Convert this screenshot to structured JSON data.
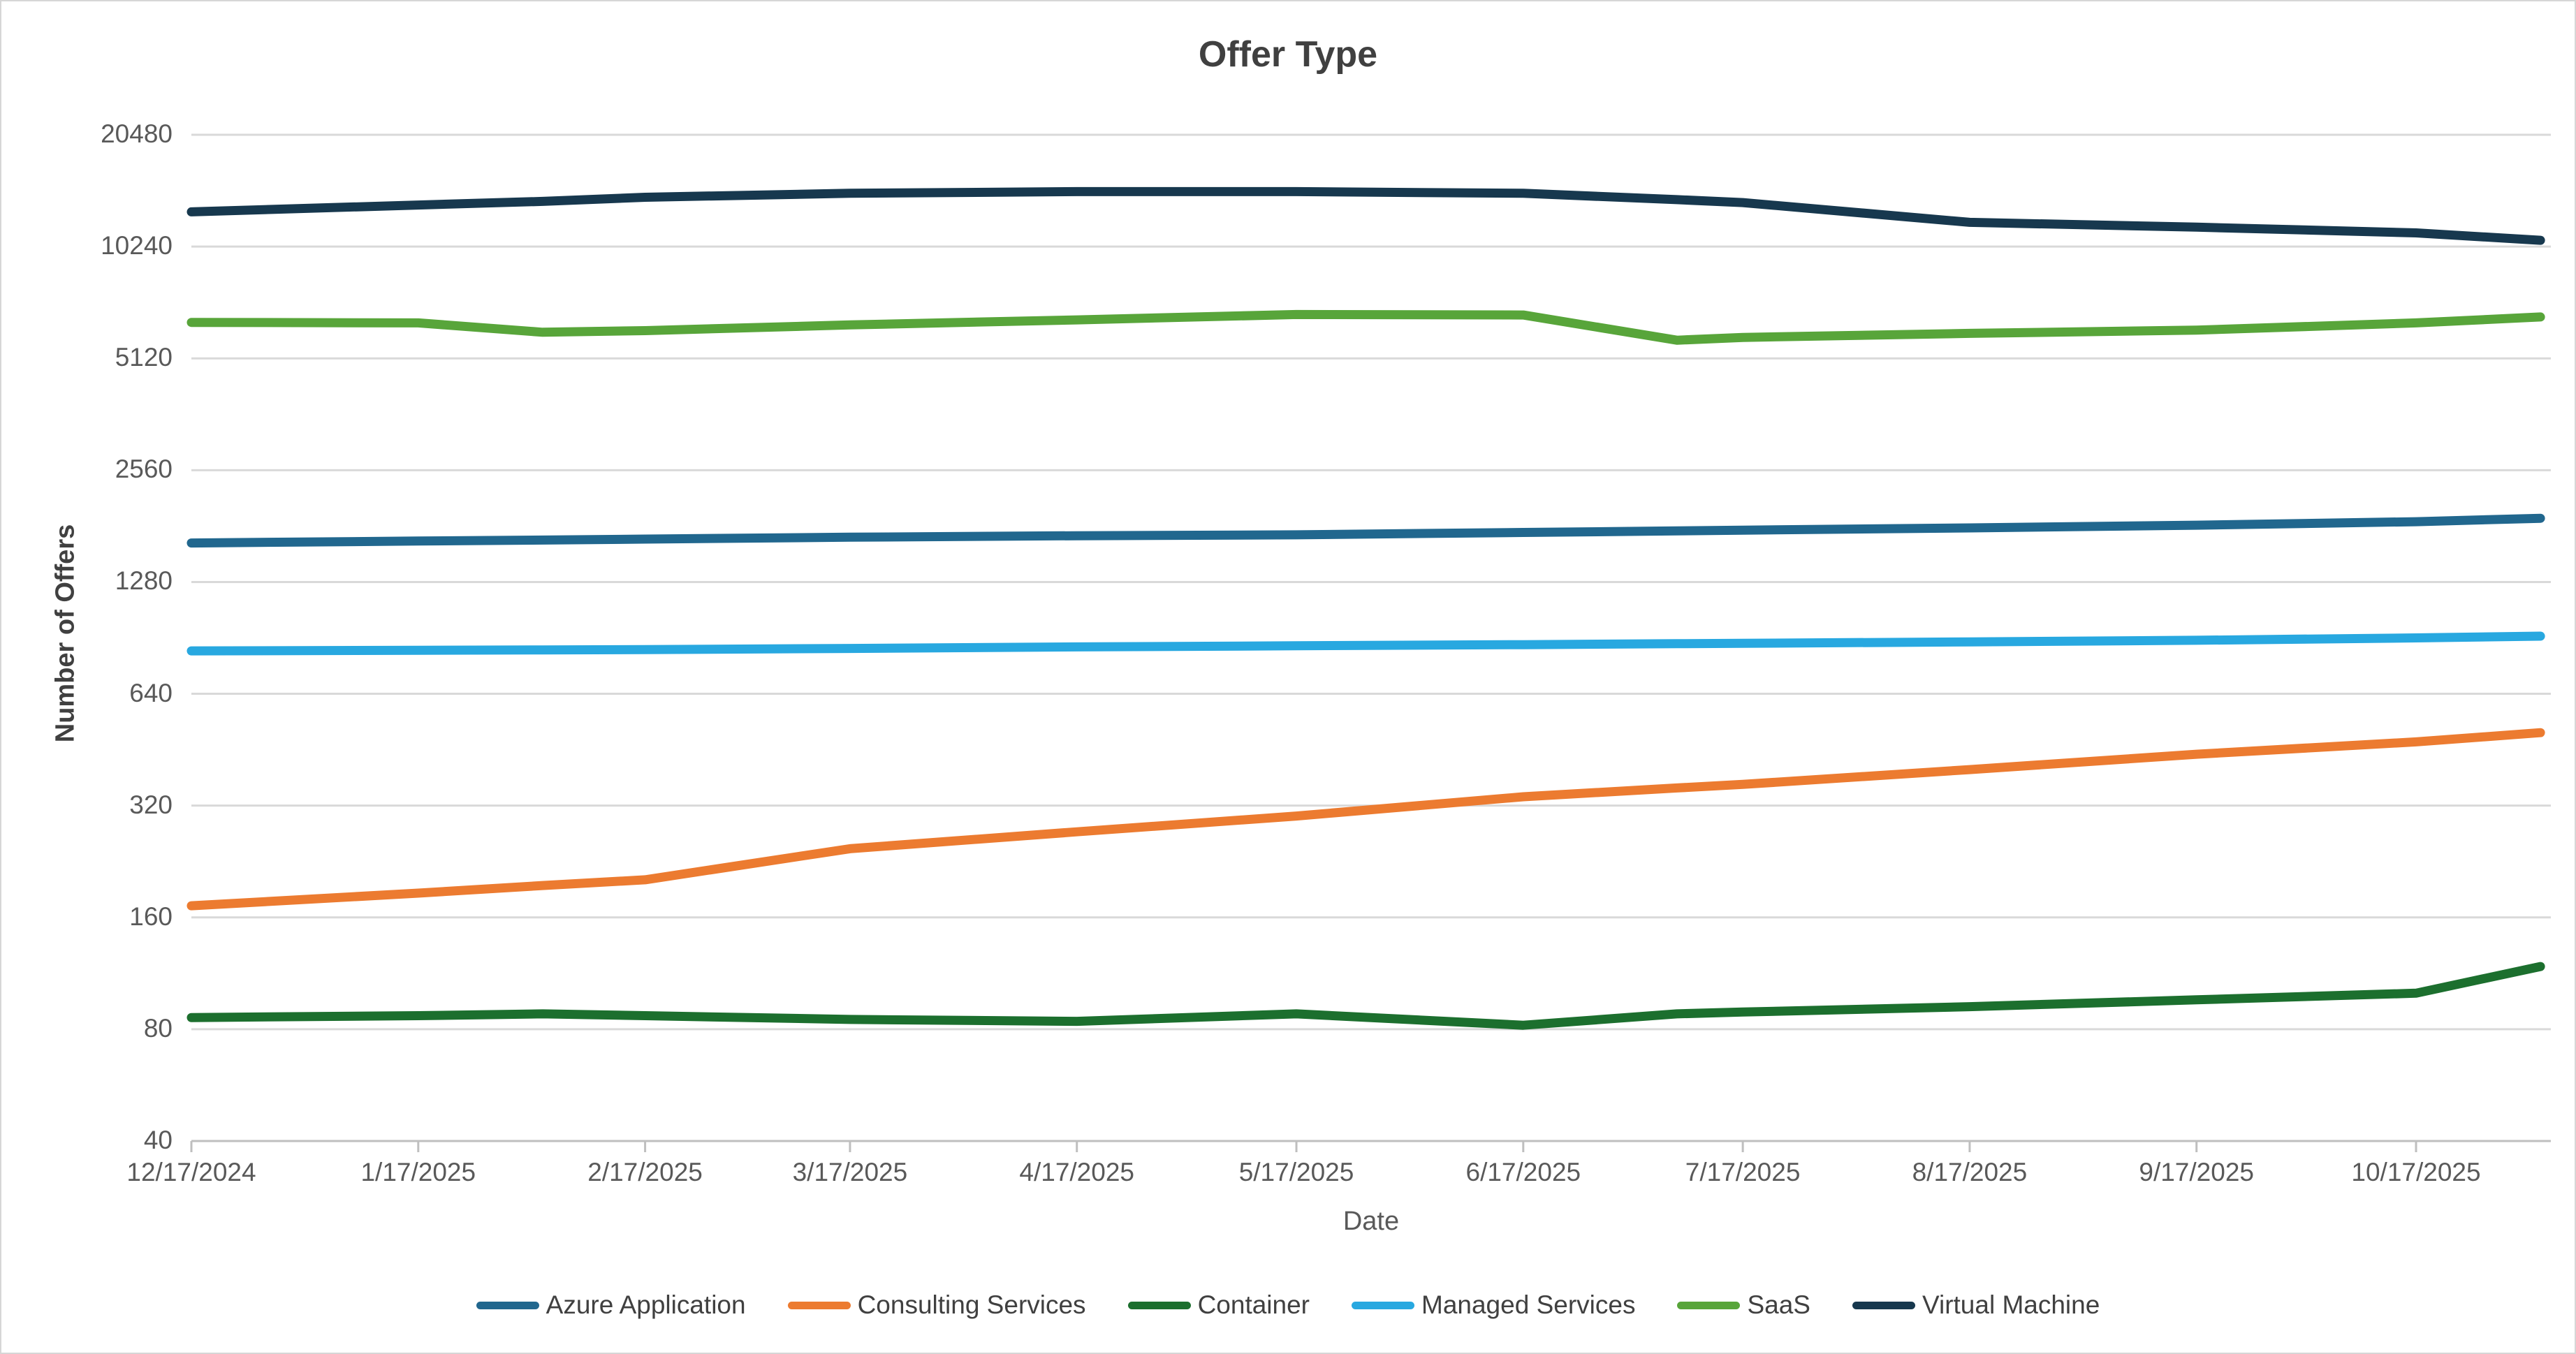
{
  "title": "Offer Type",
  "x_axis": {
    "label": "Date",
    "ticks": [
      {
        "label": "12/17/2024",
        "day": 0
      },
      {
        "label": "1/17/2025",
        "day": 31
      },
      {
        "label": "2/17/2025",
        "day": 62
      },
      {
        "label": "3/17/2025",
        "day": 90
      },
      {
        "label": "4/17/2025",
        "day": 121
      },
      {
        "label": "5/17/2025",
        "day": 151
      },
      {
        "label": "6/17/2025",
        "day": 182
      },
      {
        "label": "7/17/2025",
        "day": 212
      },
      {
        "label": "8/17/2025",
        "day": 243
      },
      {
        "label": "9/17/2025",
        "day": 274
      },
      {
        "label": "10/17/2025",
        "day": 304
      }
    ]
  },
  "y_axis": {
    "label": "Number of Offers",
    "ticks": [
      40,
      80,
      160,
      320,
      640,
      1280,
      2560,
      5120,
      10240,
      20480
    ]
  },
  "colors": {
    "gridline": "#d9d9d9",
    "axis_line": "#bfbfbf",
    "tick_text": "#595959",
    "title_text": "#404040"
  },
  "chart_data": {
    "type": "line",
    "title": "Offer Type",
    "xlabel": "Date",
    "ylabel": "Number of Offers",
    "y_scale": "log2",
    "ylim": [
      40,
      20480
    ],
    "y_ticks": [
      40,
      80,
      160,
      320,
      640,
      1280,
      2560,
      5120,
      10240,
      20480
    ],
    "grid": "horizontal",
    "legend_position": "bottom",
    "x": [
      "12/17/2024",
      "1/17/2025",
      "2/3/2025",
      "2/17/2025",
      "3/17/2025",
      "4/17/2025",
      "5/17/2025",
      "6/17/2025",
      "7/8/2025",
      "7/17/2025",
      "8/17/2025",
      "9/17/2025",
      "10/17/2025",
      "11/3/2025"
    ],
    "x_days": [
      0,
      31,
      48,
      62,
      90,
      121,
      151,
      182,
      203,
      212,
      243,
      274,
      304,
      321
    ],
    "series": [
      {
        "name": "Azure Application",
        "color": "#21678e",
        "values": [
          1630,
          1650,
          1660,
          1670,
          1690,
          1705,
          1715,
          1740,
          1757,
          1765,
          1790,
          1820,
          1860,
          1900
        ]
      },
      {
        "name": "Consulting Services",
        "color": "#ec7b30",
        "values": [
          172,
          186,
          195,
          202,
          245,
          272,
          300,
          338,
          357,
          365,
          400,
          440,
          475,
          503
        ]
      },
      {
        "name": "Container",
        "color": "#1c6f2e",
        "values": [
          86,
          87,
          88,
          87,
          85,
          84,
          88,
          82,
          88,
          89,
          92,
          96,
          100,
          118
        ]
      },
      {
        "name": "Managed Services",
        "color": "#28a8e0",
        "values": [
          835,
          838,
          840,
          842,
          848,
          856,
          862,
          868,
          873,
          875,
          883,
          892,
          905,
          915
        ]
      },
      {
        "name": "SaaS",
        "color": "#58a53a",
        "values": [
          6400,
          6380,
          6020,
          6080,
          6300,
          6500,
          6720,
          6700,
          5730,
          5830,
          5980,
          6100,
          6380,
          6620
        ]
      },
      {
        "name": "Virtual Machine",
        "color": "#17384e",
        "values": [
          12700,
          13250,
          13550,
          13900,
          14250,
          14400,
          14400,
          14250,
          13700,
          13450,
          11900,
          11550,
          11150,
          10650
        ]
      }
    ]
  }
}
